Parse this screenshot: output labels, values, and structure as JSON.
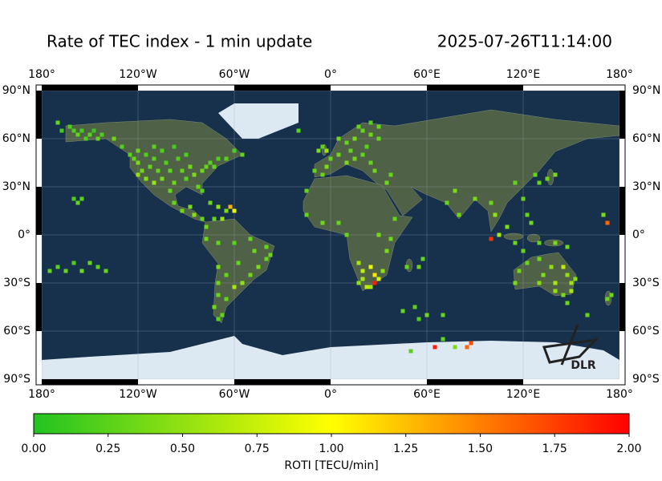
{
  "chart_data": {
    "type": "map",
    "title": "Rate of TEC index - 1 min update",
    "timestamp": "2025-07-26T11:14:00",
    "logo_text": "DLR",
    "xlim": [
      -180,
      180
    ],
    "ylim": [
      -90,
      90
    ],
    "xticks": [
      {
        "value": -180,
        "label": "180°"
      },
      {
        "value": -120,
        "label": "120°W"
      },
      {
        "value": -60,
        "label": "60°W"
      },
      {
        "value": 0,
        "label": "0°"
      },
      {
        "value": 60,
        "label": "60°E"
      },
      {
        "value": 120,
        "label": "120°E"
      },
      {
        "value": 180,
        "label": "180°"
      }
    ],
    "yticks": [
      {
        "value": 90,
        "label": "90°N"
      },
      {
        "value": 60,
        "label": "60°N"
      },
      {
        "value": 30,
        "label": "30°N"
      },
      {
        "value": 0,
        "label": "0°"
      },
      {
        "value": -30,
        "label": "30°S"
      },
      {
        "value": -60,
        "label": "60°S"
      },
      {
        "value": -90,
        "label": "90°S"
      }
    ],
    "grid": true,
    "colorbar": {
      "label": "ROTI [TECU/min]",
      "lim": [
        0,
        2
      ],
      "colors": [
        "#22c322",
        "#ffff00",
        "#ff0000"
      ],
      "ticks": [
        {
          "value": 0,
          "label": "0.00"
        },
        {
          "value": 0.25,
          "label": "0.25"
        },
        {
          "value": 0.5,
          "label": "0.50"
        },
        {
          "value": 0.75,
          "label": "0.75"
        },
        {
          "value": 1,
          "label": "1.00"
        },
        {
          "value": 1.25,
          "label": "1.25"
        },
        {
          "value": 1.5,
          "label": "1.50"
        },
        {
          "value": 1.75,
          "label": "1.75"
        },
        {
          "value": 2,
          "label": "2.00"
        }
      ]
    },
    "cell_size": 2.5,
    "points": [
      [
        -160,
        65,
        0.2
      ],
      [
        -157.5,
        62.5,
        0.3
      ],
      [
        -155,
        65,
        0.15
      ],
      [
        -152.5,
        60,
        0.2
      ],
      [
        -150,
        62.5,
        0.25
      ],
      [
        -147.5,
        65,
        0.1
      ],
      [
        -145,
        60,
        0.3
      ],
      [
        -142.5,
        62.5,
        0.2
      ],
      [
        -162.5,
        67.5,
        0.2
      ],
      [
        -167.5,
        65,
        0.15
      ],
      [
        -170,
        70,
        0.3
      ],
      [
        -135,
        60,
        0.35
      ],
      [
        -130,
        55,
        0.2
      ],
      [
        -122.5,
        47.5,
        0.3
      ],
      [
        -120,
        45,
        0.4
      ],
      [
        -117.5,
        40,
        0.35
      ],
      [
        -120,
        37.5,
        0.5
      ],
      [
        -115,
        35,
        0.45
      ],
      [
        -112.5,
        42.5,
        0.3
      ],
      [
        -110,
        47.5,
        0.25
      ],
      [
        -107.5,
        40,
        0.3
      ],
      [
        -105,
        35,
        0.4
      ],
      [
        -102.5,
        45,
        0.2
      ],
      [
        -100,
        40,
        0.3
      ],
      [
        -97.5,
        32.5,
        0.35
      ],
      [
        -95,
        47.5,
        0.2
      ],
      [
        -92.5,
        40,
        0.3
      ],
      [
        -90,
        35,
        0.25
      ],
      [
        -87.5,
        42.5,
        0.35
      ],
      [
        -85,
        37.5,
        0.4
      ],
      [
        -82.5,
        30,
        0.3
      ],
      [
        -80,
        40,
        0.35
      ],
      [
        -77.5,
        42.5,
        0.3
      ],
      [
        -75,
        45,
        0.25
      ],
      [
        -72.5,
        42.5,
        0.3
      ],
      [
        -70,
        47.5,
        0.2
      ],
      [
        -65,
        47.5,
        0.25
      ],
      [
        -60,
        52.5,
        0.2
      ],
      [
        -55,
        50,
        0.3
      ],
      [
        -80,
        27.5,
        0.25
      ],
      [
        -115,
        50,
        0.2
      ],
      [
        -110,
        55,
        0.25
      ],
      [
        -120,
        52.5,
        0.3
      ],
      [
        -105,
        52.5,
        0.2
      ],
      [
        -97.5,
        55,
        0.15
      ],
      [
        -90,
        50,
        0.2
      ],
      [
        -125,
        50,
        0.25
      ],
      [
        -110,
        32.5,
        0.55
      ],
      [
        -100,
        27.5,
        0.3
      ],
      [
        -97.5,
        20,
        0.3
      ],
      [
        -92.5,
        15,
        0.35
      ],
      [
        -87.5,
        17.5,
        0.4
      ],
      [
        -85,
        12.5,
        0.45
      ],
      [
        -80,
        10,
        0.3
      ],
      [
        -75,
        20,
        0.35
      ],
      [
        -70,
        17.5,
        0.5
      ],
      [
        -65,
        15,
        0.4
      ],
      [
        -62.5,
        17.5,
        1.3
      ],
      [
        -60,
        15,
        0.9
      ],
      [
        -67.5,
        10,
        0.55
      ],
      [
        -72.5,
        10,
        0.3
      ],
      [
        -77.5,
        5,
        0.35
      ],
      [
        -157.5,
        20,
        0.3
      ],
      [
        -155,
        22.5,
        0.25
      ],
      [
        -160,
        22.5,
        0.2
      ],
      [
        -175,
        -22.5,
        0.3
      ],
      [
        -170,
        -20,
        0.25
      ],
      [
        -165,
        -22.5,
        0.3
      ],
      [
        -160,
        -17.5,
        0.2
      ],
      [
        -155,
        -22.5,
        0.35
      ],
      [
        -150,
        -17.5,
        0.3
      ],
      [
        -145,
        -20,
        0.25
      ],
      [
        -140,
        -22.5,
        0.3
      ],
      [
        -77.5,
        -2.5,
        0.35
      ],
      [
        -70,
        -5,
        0.3
      ],
      [
        -60,
        -5,
        0.25
      ],
      [
        -50,
        -2.5,
        0.3
      ],
      [
        -47.5,
        -10,
        0.35
      ],
      [
        -40,
        -7.5,
        0.3
      ],
      [
        -45,
        -20,
        0.4
      ],
      [
        -50,
        -25,
        0.35
      ],
      [
        -55,
        -30,
        0.5
      ],
      [
        -60,
        -32.5,
        0.6
      ],
      [
        -65,
        -25,
        0.3
      ],
      [
        -70,
        -20,
        0.4
      ],
      [
        -70,
        -30,
        0.35
      ],
      [
        -70,
        -37.5,
        0.3
      ],
      [
        -65,
        -40,
        0.3
      ],
      [
        -72.5,
        -45,
        0.35
      ],
      [
        -67.5,
        -50,
        0.3
      ],
      [
        -70,
        -52.5,
        0.25
      ],
      [
        -57.5,
        -17.5,
        0.3
      ],
      [
        -40,
        -15,
        0.3
      ],
      [
        -37.5,
        -12.5,
        0.35
      ],
      [
        -10,
        40,
        0.3
      ],
      [
        -5,
        37.5,
        0.35
      ],
      [
        -2.5,
        42.5,
        0.4
      ],
      [
        0,
        47.5,
        0.3
      ],
      [
        5,
        50,
        0.35
      ],
      [
        10,
        45,
        0.4
      ],
      [
        12.5,
        52.5,
        0.3
      ],
      [
        15,
        47.5,
        0.35
      ],
      [
        20,
        50,
        0.3
      ],
      [
        22.5,
        55,
        0.25
      ],
      [
        25,
        45,
        0.3
      ],
      [
        27.5,
        40,
        0.35
      ],
      [
        30,
        60,
        0.3
      ],
      [
        25,
        62.5,
        0.35
      ],
      [
        20,
        65,
        0.3
      ],
      [
        15,
        60,
        0.4
      ],
      [
        10,
        57.5,
        0.3
      ],
      [
        5,
        60,
        0.35
      ],
      [
        -5,
        55,
        0.3
      ],
      [
        -7.5,
        52.5,
        0.4
      ],
      [
        -2.5,
        52.5,
        0.55
      ],
      [
        17.5,
        67.5,
        0.3
      ],
      [
        25,
        70,
        0.25
      ],
      [
        30,
        67.5,
        0.3
      ],
      [
        -20,
        65,
        0.25
      ],
      [
        -15,
        27.5,
        0.3
      ],
      [
        35,
        32.5,
        0.35
      ],
      [
        37.5,
        37.5,
        0.3
      ],
      [
        -15,
        12.5,
        0.3
      ],
      [
        -5,
        7.5,
        0.35
      ],
      [
        5,
        7.5,
        0.3
      ],
      [
        10,
        0,
        0.3
      ],
      [
        30,
        0,
        0.4
      ],
      [
        37.5,
        -2.5,
        0.35
      ],
      [
        35,
        -10,
        0.4
      ],
      [
        17.5,
        -17.5,
        0.6
      ],
      [
        20,
        -22.5,
        0.7
      ],
      [
        25,
        -20,
        0.9
      ],
      [
        27.5,
        -25,
        1.1
      ],
      [
        30,
        -27.5,
        0.8
      ],
      [
        27.5,
        -30,
        1.9
      ],
      [
        22.5,
        -32.5,
        0.7
      ],
      [
        20,
        -27.5,
        0.6
      ],
      [
        17.5,
        -30,
        0.5
      ],
      [
        25,
        -32.5,
        0.6
      ],
      [
        32.5,
        -22.5,
        0.5
      ],
      [
        47.5,
        -20,
        0.3
      ],
      [
        55,
        -20,
        0.35
      ],
      [
        57.5,
        -15,
        0.3
      ],
      [
        40,
        10,
        0.3
      ],
      [
        52.5,
        -45,
        0.25
      ],
      [
        45,
        -47.5,
        0.3
      ],
      [
        70,
        -50,
        0.3
      ],
      [
        60,
        -50,
        0.35
      ],
      [
        55,
        -52.5,
        0.2
      ],
      [
        70,
        -65,
        0.3
      ],
      [
        65,
        -70,
        1.9
      ],
      [
        50,
        -72.5,
        0.25
      ],
      [
        87.5,
        -67.5,
        1.7
      ],
      [
        85,
        -70,
        1.6
      ],
      [
        77.5,
        -70,
        0.4
      ],
      [
        77.5,
        27.5,
        0.4
      ],
      [
        72.5,
        20,
        0.3
      ],
      [
        80,
        12.5,
        0.35
      ],
      [
        90,
        22.5,
        0.4
      ],
      [
        100,
        20,
        0.35
      ],
      [
        102.5,
        12.5,
        0.5
      ],
      [
        100,
        -2.5,
        1.8
      ],
      [
        105,
        0,
        0.6
      ],
      [
        110,
        5,
        0.4
      ],
      [
        115,
        -5,
        0.35
      ],
      [
        120,
        -10,
        0.3
      ],
      [
        122.5,
        12.5,
        0.3
      ],
      [
        125,
        7.5,
        0.35
      ],
      [
        120,
        22.5,
        0.3
      ],
      [
        130,
        32.5,
        0.3
      ],
      [
        135,
        35,
        0.35
      ],
      [
        140,
        37.5,
        0.4
      ],
      [
        127.5,
        37.5,
        0.3
      ],
      [
        115,
        32.5,
        0.3
      ],
      [
        130,
        -5,
        0.3
      ],
      [
        140,
        -5,
        0.4
      ],
      [
        147.5,
        -7.5,
        0.35
      ],
      [
        172.5,
        7.5,
        1.6
      ],
      [
        170,
        12.5,
        0.4
      ],
      [
        115,
        -30,
        0.4
      ],
      [
        117.5,
        -22.5,
        0.35
      ],
      [
        122.5,
        -17.5,
        0.3
      ],
      [
        130,
        -15,
        0.35
      ],
      [
        132.5,
        -25,
        0.45
      ],
      [
        137.5,
        -20,
        0.5
      ],
      [
        140,
        -30,
        0.6
      ],
      [
        145,
        -20,
        0.7
      ],
      [
        147.5,
        -25,
        0.5
      ],
      [
        150,
        -30,
        0.55
      ],
      [
        145,
        -37.5,
        0.4
      ],
      [
        140,
        -35,
        0.5
      ],
      [
        130,
        -30,
        0.45
      ],
      [
        152.5,
        -27.5,
        0.45
      ],
      [
        150,
        -35,
        0.6
      ],
      [
        172.5,
        -40,
        0.3
      ],
      [
        175,
        -37.5,
        0.35
      ],
      [
        160,
        -50,
        0.3
      ],
      [
        147.5,
        -42.5,
        0.35
      ]
    ]
  }
}
